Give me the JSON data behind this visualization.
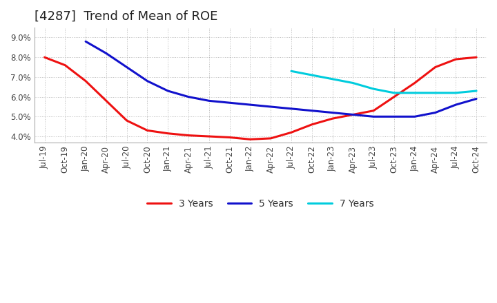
{
  "title": "[4287]  Trend of Mean of ROE",
  "ylim": [
    0.037,
    0.095
  ],
  "yticks": [
    0.04,
    0.05,
    0.06,
    0.07,
    0.08,
    0.09
  ],
  "ytick_labels": [
    "4.0%",
    "5.0%",
    "6.0%",
    "7.0%",
    "8.0%",
    "9.0%"
  ],
  "x_labels": [
    "Jul-19",
    "Oct-19",
    "Jan-20",
    "Apr-20",
    "Jul-20",
    "Oct-20",
    "Jan-21",
    "Apr-21",
    "Jul-21",
    "Oct-21",
    "Jan-22",
    "Apr-22",
    "Jul-22",
    "Oct-22",
    "Jan-23",
    "Apr-23",
    "Jul-23",
    "Oct-23",
    "Jan-24",
    "Apr-24",
    "Jul-24",
    "Oct-24"
  ],
  "series": {
    "3 Years": {
      "color": "#ee1111",
      "values": [
        0.08,
        0.076,
        0.068,
        0.058,
        0.048,
        0.043,
        0.0415,
        0.0405,
        0.04,
        0.0395,
        0.0385,
        0.039,
        0.042,
        0.046,
        0.049,
        0.051,
        0.053,
        0.06,
        0.067,
        0.075,
        0.079,
        0.08
      ]
    },
    "5 Years": {
      "color": "#1111cc",
      "values": [
        null,
        null,
        0.088,
        0.082,
        0.075,
        0.068,
        0.063,
        0.06,
        0.058,
        0.057,
        0.056,
        0.055,
        0.054,
        0.053,
        0.052,
        0.051,
        0.05,
        0.05,
        0.05,
        0.052,
        0.056,
        0.059
      ]
    },
    "7 Years": {
      "color": "#00ccdd",
      "values": [
        null,
        null,
        null,
        null,
        null,
        null,
        null,
        null,
        null,
        null,
        null,
        null,
        0.073,
        0.071,
        0.069,
        0.067,
        0.064,
        0.062,
        0.062,
        0.062,
        0.062,
        0.063
      ]
    },
    "10 Years": {
      "color": "#008800",
      "values": [
        null,
        null,
        null,
        null,
        null,
        null,
        null,
        null,
        null,
        null,
        null,
        null,
        null,
        null,
        null,
        null,
        null,
        null,
        null,
        null,
        null,
        null
      ]
    }
  },
  "background_color": "#ffffff",
  "grid_color": "#bbbbbb",
  "title_fontsize": 13,
  "tick_fontsize": 8.5,
  "legend_fontsize": 10
}
